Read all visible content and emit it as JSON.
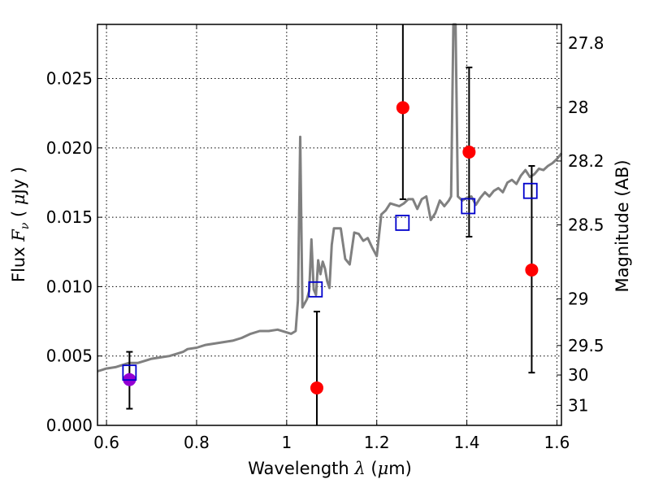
{
  "chart_data": {
    "type": "scatter",
    "xlabel": {
      "prefix": "Wavelength  ",
      "symbol": "λ",
      "suffix": " (",
      "unit_mu": "μ",
      "unit_rest": "m)"
    },
    "ylabel": {
      "prefix": "Flux  ",
      "symbol": "F",
      "sub": "ν",
      "suffix": "  ( ",
      "unit_mu": "μ",
      "unit_rest": "Jy )"
    },
    "y2label": "Magnitude (AB)",
    "xlim": [
      0.58,
      1.61
    ],
    "ylim": [
      0.0,
      0.0289
    ],
    "grid": true,
    "xticks": [
      {
        "value": 0.6,
        "label": "0.6"
      },
      {
        "value": 0.8,
        "label": "0.8"
      },
      {
        "value": 1.0,
        "label": "1"
      },
      {
        "value": 1.2,
        "label": "1.2"
      },
      {
        "value": 1.4,
        "label": "1.4"
      },
      {
        "value": 1.6,
        "label": "1.6"
      }
    ],
    "yticks": [
      {
        "value": 0.0,
        "label": "0.000"
      },
      {
        "value": 0.005,
        "label": "0.005"
      },
      {
        "value": 0.01,
        "label": "0.010"
      },
      {
        "value": 0.015,
        "label": "0.015"
      },
      {
        "value": 0.02,
        "label": "0.020"
      },
      {
        "value": 0.025,
        "label": "0.025"
      }
    ],
    "y2ticks": [
      {
        "value": 27.8,
        "label": "27.8"
      },
      {
        "value": 28.0,
        "label": "28"
      },
      {
        "value": 28.2,
        "label": "28.2"
      },
      {
        "value": 28.5,
        "label": "28.5"
      },
      {
        "value": 29.0,
        "label": "29"
      },
      {
        "value": 29.5,
        "label": "29.5"
      },
      {
        "value": 30.0,
        "label": "30"
      },
      {
        "value": 31.0,
        "label": "31"
      }
    ],
    "series": [
      {
        "kind": "line",
        "color": "#808080",
        "x": [
          0.58,
          0.6,
          0.62,
          0.64,
          0.65,
          0.67,
          0.69,
          0.7,
          0.72,
          0.74,
          0.76,
          0.77,
          0.78,
          0.8,
          0.82,
          0.84,
          0.86,
          0.88,
          0.9,
          0.92,
          0.94,
          0.96,
          0.98,
          1.0,
          1.01,
          1.02,
          1.025,
          1.03,
          1.035,
          1.045,
          1.05,
          1.055,
          1.06,
          1.065,
          1.07,
          1.075,
          1.08,
          1.085,
          1.09,
          1.095,
          1.1,
          1.105,
          1.11,
          1.12,
          1.13,
          1.14,
          1.15,
          1.16,
          1.17,
          1.18,
          1.19,
          1.2,
          1.21,
          1.22,
          1.23,
          1.24,
          1.25,
          1.26,
          1.27,
          1.28,
          1.29,
          1.3,
          1.31,
          1.32,
          1.33,
          1.34,
          1.35,
          1.36,
          1.365,
          1.37,
          1.375,
          1.38,
          1.39,
          1.4,
          1.41,
          1.42,
          1.43,
          1.44,
          1.45,
          1.46,
          1.47,
          1.48,
          1.49,
          1.5,
          1.51,
          1.52,
          1.53,
          1.54,
          1.55,
          1.56,
          1.57,
          1.58,
          1.59,
          1.6,
          1.61
        ],
        "y": [
          0.0039,
          0.0041,
          0.0042,
          0.0044,
          0.0045,
          0.0045,
          0.0047,
          0.0048,
          0.0049,
          0.005,
          0.0052,
          0.0053,
          0.0055,
          0.0056,
          0.0058,
          0.0059,
          0.006,
          0.0061,
          0.0063,
          0.0066,
          0.0068,
          0.0068,
          0.0069,
          0.0067,
          0.0066,
          0.0068,
          0.009,
          0.0208,
          0.0085,
          0.0091,
          0.0097,
          0.0134,
          0.0098,
          0.0094,
          0.0119,
          0.0109,
          0.0118,
          0.0113,
          0.0104,
          0.0099,
          0.013,
          0.0142,
          0.0142,
          0.0142,
          0.012,
          0.0116,
          0.0139,
          0.0138,
          0.0133,
          0.0135,
          0.0128,
          0.0122,
          0.0152,
          0.0155,
          0.016,
          0.0159,
          0.0158,
          0.016,
          0.0163,
          0.0163,
          0.0156,
          0.0163,
          0.0165,
          0.0148,
          0.0153,
          0.0162,
          0.0158,
          0.0162,
          0.0165,
          0.029,
          0.029,
          0.0165,
          0.0162,
          0.0164,
          0.0165,
          0.0159,
          0.0164,
          0.0168,
          0.0165,
          0.0169,
          0.0171,
          0.0168,
          0.0175,
          0.0177,
          0.0174,
          0.018,
          0.0184,
          0.0179,
          0.0181,
          0.0185,
          0.0184,
          0.0187,
          0.0189,
          0.0192,
          0.0196
        ]
      },
      {
        "kind": "points-with-errors",
        "color": "#ff0000",
        "marker": "circle",
        "x": [
          1.067,
          1.258,
          1.405,
          1.544
        ],
        "y": [
          0.0027,
          0.0229,
          0.0197,
          0.0112
        ],
        "err_low": [
          0.0,
          0.0163,
          0.0136,
          0.0038
        ],
        "err_high": [
          0.0082,
          0.0295,
          0.0258,
          0.0187
        ]
      },
      {
        "kind": "points-with-errors",
        "color": "#9400d3",
        "marker": "circle",
        "x": [
          0.651
        ],
        "y": [
          0.0033
        ],
        "err_low": [
          0.0012
        ],
        "err_high": [
          0.0053
        ]
      },
      {
        "kind": "points",
        "color": "#0000cc",
        "marker": "open-square",
        "x": [
          0.651,
          1.064,
          1.257,
          1.403,
          1.541
        ],
        "y": [
          0.0038,
          0.0098,
          0.0146,
          0.0158,
          0.0169
        ]
      }
    ]
  }
}
